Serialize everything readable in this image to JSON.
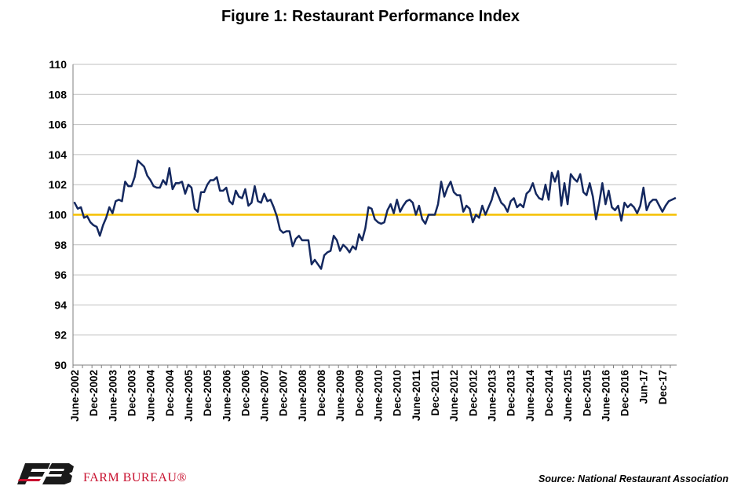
{
  "chart_data": {
    "type": "line",
    "title": "Figure 1: Restaurant Performance Index",
    "xlabel": "",
    "ylabel": "",
    "ylim": [
      90,
      110
    ],
    "yticks": [
      "90",
      "92",
      "94",
      "96",
      "98",
      "100",
      "102",
      "104",
      "106",
      "108",
      "110"
    ],
    "grid": true,
    "reference_line": 100,
    "x_start": "2002-06",
    "x_end": "2017-12",
    "xtick_labels": [
      "June-2002",
      "Dec-2002",
      "June-2003",
      "Dec-2003",
      "June-2004",
      "Dec-2004",
      "June-2005",
      "Dec-2005",
      "June-2006",
      "Dec-2006",
      "June-2007",
      "Dec-2007",
      "June-2008",
      "Dec-2008",
      "June-2009",
      "Dec-2009",
      "June-2010",
      "Dec-2010",
      "June-2011",
      "Dec-2011",
      "June-2012",
      "Dec-2012",
      "June-2013",
      "Dec-2013",
      "June-2014",
      "Dec-2014",
      "June-2015",
      "Dec-2015",
      "June-2016",
      "Dec-2016",
      "Jun-17",
      "Dec-17"
    ],
    "series": [
      {
        "name": "",
        "values": [
          100.8,
          100.4,
          100.5,
          99.8,
          99.9,
          99.5,
          99.3,
          99.2,
          98.6,
          99.3,
          99.8,
          100.5,
          100.1,
          100.9,
          101.0,
          100.9,
          102.2,
          101.9,
          101.9,
          102.5,
          103.6,
          103.4,
          103.2,
          102.6,
          102.3,
          101.9,
          101.8,
          101.8,
          102.3,
          102.0,
          103.1,
          101.7,
          102.1,
          102.1,
          102.2,
          101.4,
          102.0,
          101.8,
          100.4,
          100.2,
          101.5,
          101.5,
          102.0,
          102.3,
          102.3,
          102.5,
          101.6,
          101.6,
          101.8,
          100.9,
          100.7,
          101.6,
          101.2,
          101.1,
          101.7,
          100.6,
          100.8,
          101.9,
          100.9,
          100.8,
          101.4,
          100.9,
          101.0,
          100.5,
          99.9,
          99.0,
          98.8,
          98.9,
          98.9,
          97.9,
          98.4,
          98.6,
          98.3,
          98.3,
          98.3,
          96.7,
          97.0,
          96.7,
          96.4,
          97.3,
          97.5,
          97.6,
          98.6,
          98.3,
          97.6,
          98.0,
          97.8,
          97.5,
          97.9,
          97.7,
          98.7,
          98.3,
          99.1,
          100.5,
          100.4,
          99.7,
          99.5,
          99.4,
          99.5,
          100.3,
          100.7,
          100.1,
          101.0,
          100.2,
          100.6,
          100.9,
          101.0,
          100.8,
          100.0,
          100.6,
          99.7,
          99.4,
          100.0,
          100.0,
          100.0,
          100.7,
          102.2,
          101.2,
          101.8,
          102.2,
          101.5,
          101.3,
          101.3,
          100.2,
          100.6,
          100.4,
          99.5,
          100.0,
          99.8,
          100.6,
          100.0,
          100.5,
          101.0,
          101.8,
          101.3,
          100.8,
          100.6,
          100.2,
          100.9,
          101.1,
          100.5,
          100.7,
          100.5,
          101.4,
          101.6,
          102.1,
          101.4,
          101.1,
          101.0,
          102.0,
          101.0,
          102.8,
          102.2,
          102.9,
          100.6,
          102.1,
          100.7,
          102.7,
          102.4,
          102.2,
          102.7,
          101.5,
          101.3,
          102.1,
          101.2,
          99.7,
          100.8,
          102.1,
          100.7,
          101.6,
          100.5,
          100.3,
          100.6,
          99.6,
          100.8,
          100.5,
          100.7,
          100.5,
          100.1,
          100.6,
          101.8,
          100.3,
          100.8,
          101.0,
          101.0,
          100.6,
          100.2,
          100.6,
          100.9,
          101.0,
          101.1
        ]
      }
    ],
    "colors": {
      "series_line": "#14285f",
      "reference_line": "#f5c000",
      "grid": "#bfbfbf",
      "axis": "#7f7f7f"
    }
  },
  "footer": {
    "logo_icon": "farm-bureau-logo-icon",
    "brand_name": "FARM BUREAU®",
    "source": "Source: National Restaurant Association"
  }
}
